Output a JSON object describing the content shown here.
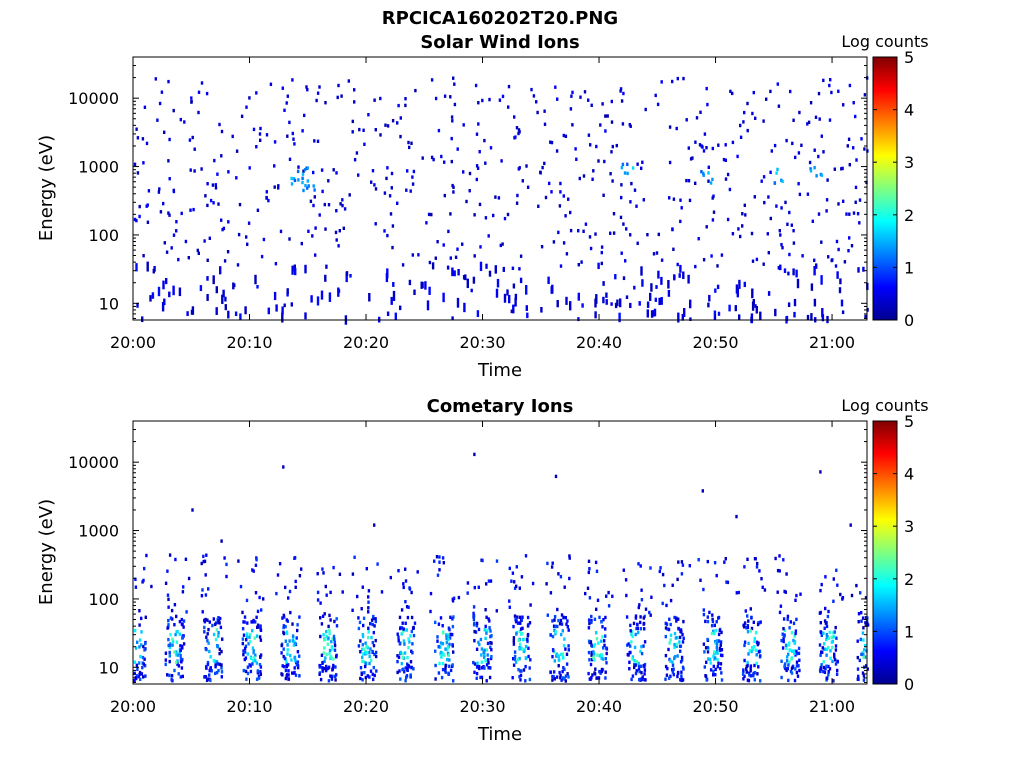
{
  "figure": {
    "title": "RPCICA160202T20.PNG"
  },
  "colorbar": {
    "label": "Log counts",
    "ticks": [
      "0",
      "1",
      "2",
      "3",
      "4",
      "5"
    ],
    "range": [
      0,
      5
    ],
    "colormap": "jet"
  },
  "chart_data": [
    {
      "type": "heatmap",
      "title": "Solar Wind Ions",
      "xlabel": "Time",
      "ylabel": "Energy (eV)",
      "x_ticks": [
        "20:00",
        "20:10",
        "20:20",
        "20:30",
        "20:40",
        "20:50",
        "21:00"
      ],
      "y_ticks": [
        "10",
        "100",
        "1000",
        "10000"
      ],
      "y_scale": "log",
      "xlim": [
        "20:00",
        "21:03"
      ],
      "ylim": [
        5.7,
        40000
      ],
      "z_label": "Log counts",
      "z_range": [
        0,
        5
      ],
      "dominant_value_range": [
        0,
        1.7
      ],
      "description_of_content": "sparse single-count pixels spread from ~10 eV to ~20000 eV across the whole hour; small patches reaching ~1-1.5 log counts near 300-1000 eV"
    },
    {
      "type": "heatmap",
      "title": "Cometary Ions",
      "xlabel": "Time",
      "ylabel": "Energy (eV)",
      "x_ticks": [
        "20:00",
        "20:10",
        "20:20",
        "20:30",
        "20:40",
        "20:50",
        "21:00"
      ],
      "y_ticks": [
        "10",
        "100",
        "1000",
        "10000"
      ],
      "y_scale": "log",
      "xlim": [
        "20:00",
        "21:03"
      ],
      "ylim": [
        5.7,
        40000
      ],
      "z_label": "Log counts",
      "z_range": [
        0,
        5
      ],
      "dominant_value_range": [
        0,
        2.3
      ],
      "description_of_content": "periodic bursts roughly every 3.3 minutes concentrated between ~6 and ~60 eV with peaks near 2 log counts; sparse counts up to ~400 eV and isolated points at high energies"
    }
  ]
}
